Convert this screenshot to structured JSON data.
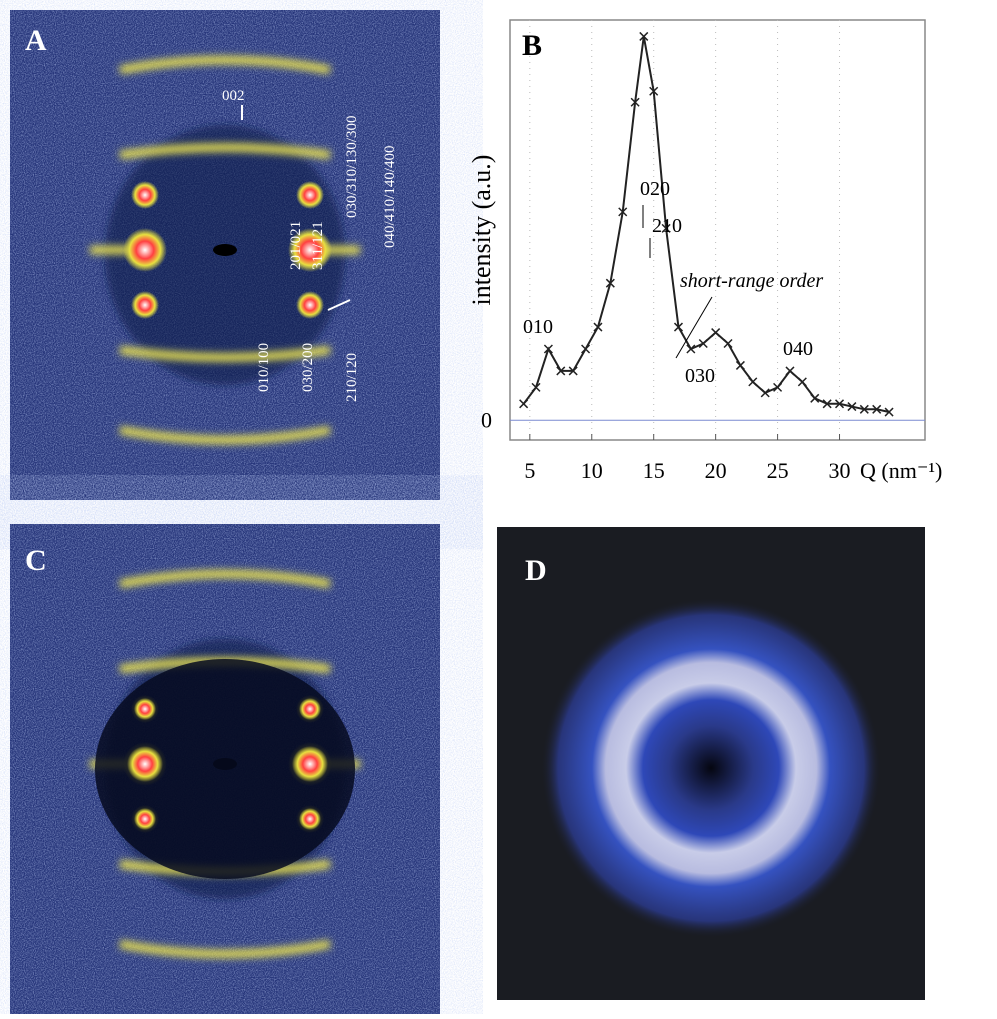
{
  "panels": {
    "a": {
      "letter": "A",
      "labels": [
        "002",
        "201/021",
        "311/121",
        "030/310/130/300",
        "040/410/140/400",
        "010/100",
        "030/200",
        "210/120"
      ]
    },
    "c": {
      "letter": "C"
    },
    "d": {
      "letter": "D"
    }
  },
  "chart_data": {
    "type": "line",
    "letter": "B",
    "x_label": "Q (nm⁻¹)",
    "y_label": "intensity (a.u.)",
    "x": [
      4.5,
      5.5,
      6.5,
      7.5,
      8.5,
      9.5,
      10.5,
      11.5,
      12.5,
      13.5,
      14.2,
      15,
      16,
      17,
      18,
      19,
      20,
      21,
      22,
      23,
      24,
      25,
      26,
      27,
      28,
      29,
      30,
      31,
      32,
      33,
      34
    ],
    "values": [
      0.3,
      0.6,
      1.3,
      0.9,
      0.9,
      1.3,
      1.7,
      2.5,
      3.8,
      5.8,
      7.0,
      6.0,
      3.5,
      1.7,
      1.3,
      1.4,
      1.6,
      1.4,
      1.0,
      0.7,
      0.5,
      0.6,
      0.9,
      0.7,
      0.4,
      0.3,
      0.3,
      0.25,
      0.2,
      0.2,
      0.15
    ],
    "color": "#222222",
    "xlim": [
      3.4,
      36.9
    ],
    "ylim": [
      -0.36,
      7.3
    ],
    "xticks": [
      5,
      10,
      15,
      20,
      25,
      30
    ],
    "yticks": [
      0
    ],
    "grid": true,
    "annotations": [
      "010",
      "020",
      "210",
      "030",
      "040",
      "short-range order"
    ]
  }
}
